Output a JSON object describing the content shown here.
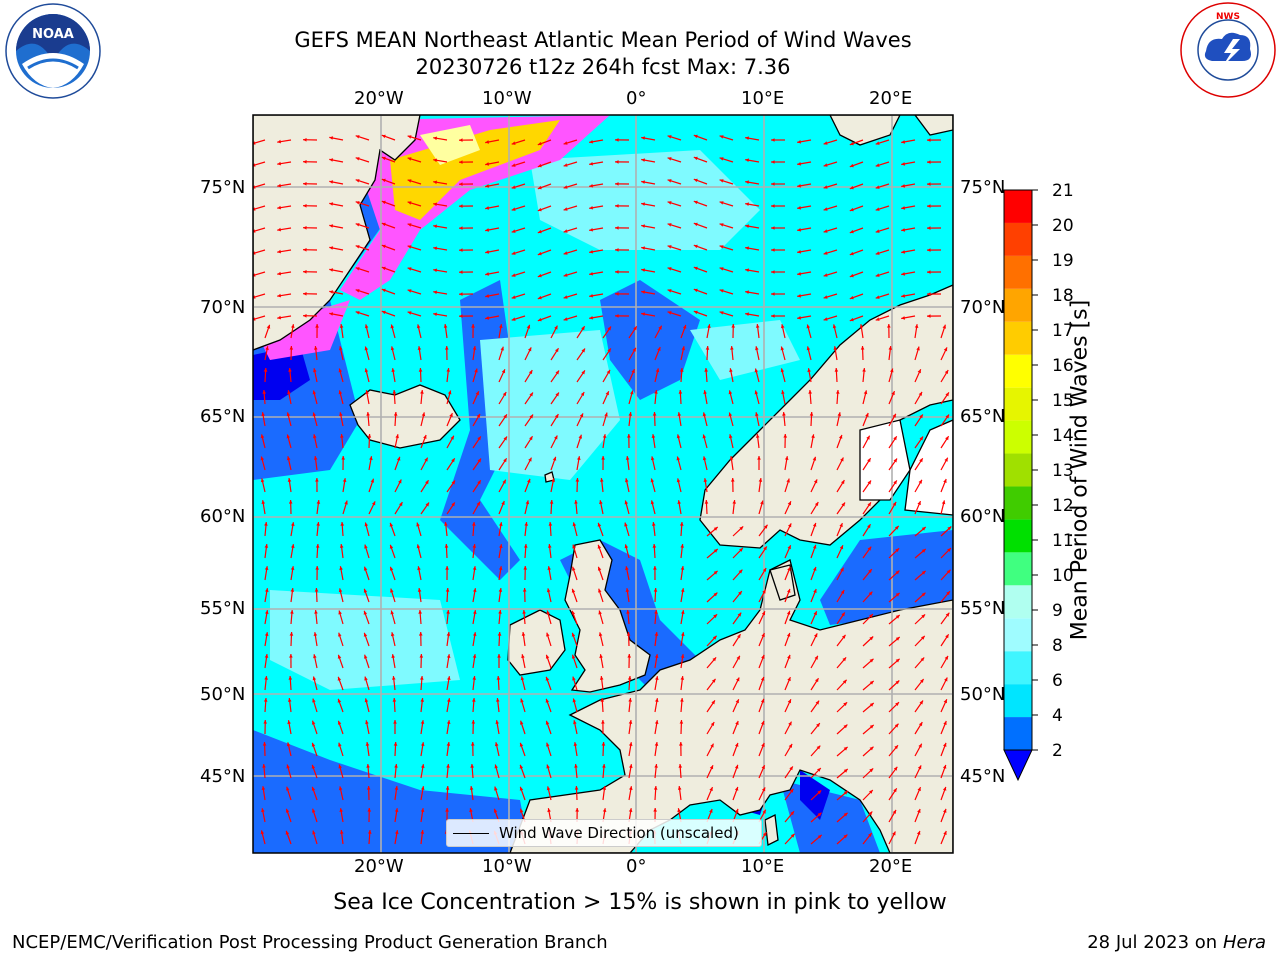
{
  "title": {
    "line1": "GEFS MEAN Northeast Atlantic Mean Period of Wind Waves",
    "line2": "20230726 t12z 264h fcst   Max: 7.36"
  },
  "axes": {
    "lon_labels": [
      "20°W",
      "10°W",
      "0°",
      "10°E",
      "20°E"
    ],
    "lat_labels": [
      "75°N",
      "70°N",
      "65°N",
      "60°N",
      "55°N",
      "50°N",
      "45°N"
    ]
  },
  "legend": {
    "label": "Wind Wave Direction (unscaled)"
  },
  "colorbar": {
    "label": "Mean Period of Wind Waves [s]",
    "ticks": [
      "2",
      "4",
      "6",
      "8",
      "9",
      "10",
      "11",
      "12",
      "13",
      "14",
      "15",
      "16",
      "17",
      "18",
      "19",
      "20",
      "21"
    ],
    "colors": [
      "#0070ff",
      "#00e5ff",
      "#40f5ff",
      "#9ffcff",
      "#b0fff0",
      "#40ff80",
      "#00e000",
      "#40cc00",
      "#a0e000",
      "#ccff00",
      "#e6f500",
      "#ffff00",
      "#ffcc00",
      "#ffa500",
      "#ff7000",
      "#ff4000",
      "#ff0000"
    ],
    "under_color": "#0000ff"
  },
  "note": "Sea Ice Concentration > 15% is shown in pink to yellow",
  "footer": {
    "left": "NCEP/EMC/Verification Post Processing Product Generation Branch",
    "right_date": "28 Jul 2023 on",
    "right_host": "Hera"
  },
  "logos": {
    "left": "NOAA",
    "right": "NATIONAL WEATHER SERVICE"
  },
  "colors": {
    "ocean": "#00ffff",
    "land": "#efedde",
    "ocean_light": "#66f7ff",
    "ocean_deep": "#1a6bff",
    "arrow": "#ff0000",
    "grid": "#b0b0b0"
  }
}
